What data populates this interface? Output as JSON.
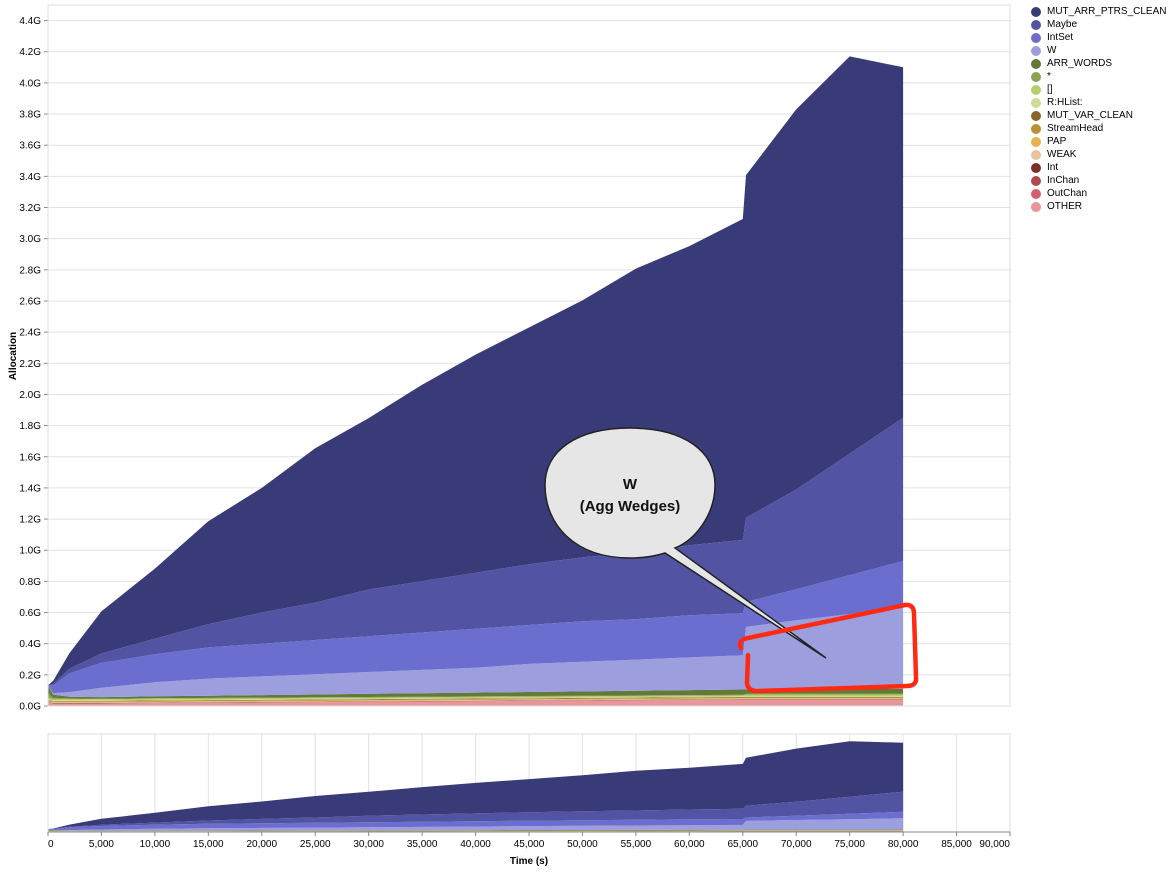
{
  "chart_data": {
    "type": "area",
    "stacked": true,
    "xlabel": "Time (s)",
    "ylabel": "Allocation",
    "xlim": [
      0,
      90000
    ],
    "ylim": [
      0,
      4.5
    ],
    "y_unit_suffix": "G",
    "x_ticks": [
      0,
      5000,
      10000,
      15000,
      20000,
      25000,
      30000,
      35000,
      40000,
      45000,
      50000,
      55000,
      60000,
      65000,
      70000,
      75000,
      80000,
      85000,
      90000
    ],
    "x_tick_labels": [
      "0",
      "5,000",
      "10,000",
      "15,000",
      "20,000",
      "25,000",
      "30,000",
      "35,000",
      "40,000",
      "45,000",
      "50,000",
      "55,000",
      "60,000",
      "65,000",
      "70,000",
      "75,000",
      "80,000",
      "85,000",
      "90,000"
    ],
    "y_ticks": [
      0.0,
      0.2,
      0.4,
      0.6,
      0.8,
      1.0,
      1.2,
      1.4,
      1.6,
      1.8,
      2.0,
      2.2,
      2.4,
      2.6,
      2.8,
      3.0,
      3.2,
      3.4,
      3.6,
      3.8,
      4.0,
      4.2,
      4.4
    ],
    "y_tick_labels": [
      "0.0G",
      "0.2G",
      "0.4G",
      "0.6G",
      "0.8G",
      "1.0G",
      "1.2G",
      "1.4G",
      "1.6G",
      "1.8G",
      "2.0G",
      "2.2G",
      "2.4G",
      "2.6G",
      "2.8G",
      "3.0G",
      "3.2G",
      "3.4G",
      "3.6G",
      "3.8G",
      "4.0G",
      "4.2G",
      "4.4G"
    ],
    "legend_position": "right",
    "grid": true,
    "x": [
      0,
      500,
      2000,
      5000,
      10000,
      15000,
      20000,
      25000,
      30000,
      35000,
      40000,
      45000,
      50000,
      55000,
      60000,
      65000,
      65300,
      70000,
      75000,
      80000
    ],
    "series": [
      {
        "name": "OTHER",
        "color": "#e8959c",
        "values": [
          0.02,
          0.015,
          0.015,
          0.015,
          0.018,
          0.02,
          0.022,
          0.024,
          0.026,
          0.028,
          0.03,
          0.032,
          0.034,
          0.036,
          0.038,
          0.04,
          0.04,
          0.04,
          0.04,
          0.04
        ]
      },
      {
        "name": "OutChan",
        "color": "#d25f6e",
        "values": [
          0.001,
          0.001,
          0.001,
          0.001,
          0.001,
          0.001,
          0.001,
          0.001,
          0.001,
          0.001,
          0.001,
          0.001,
          0.001,
          0.001,
          0.001,
          0.001,
          0.001,
          0.001,
          0.001,
          0.001
        ]
      },
      {
        "name": "InChan",
        "color": "#b14a4f",
        "values": [
          0.001,
          0.001,
          0.001,
          0.001,
          0.001,
          0.001,
          0.001,
          0.001,
          0.001,
          0.001,
          0.001,
          0.001,
          0.001,
          0.001,
          0.001,
          0.001,
          0.001,
          0.001,
          0.001,
          0.001
        ]
      },
      {
        "name": "Int",
        "color": "#7d2d2a",
        "values": [
          0.002,
          0.002,
          0.002,
          0.002,
          0.002,
          0.002,
          0.002,
          0.002,
          0.002,
          0.002,
          0.002,
          0.002,
          0.002,
          0.002,
          0.002,
          0.002,
          0.002,
          0.002,
          0.002,
          0.002
        ]
      },
      {
        "name": "WEAK",
        "color": "#e7c39b",
        "values": [
          0.003,
          0.003,
          0.003,
          0.003,
          0.003,
          0.003,
          0.003,
          0.003,
          0.003,
          0.003,
          0.003,
          0.003,
          0.003,
          0.003,
          0.003,
          0.003,
          0.003,
          0.003,
          0.003,
          0.003
        ]
      },
      {
        "name": "PAP",
        "color": "#e6b24e",
        "values": [
          0.004,
          0.004,
          0.004,
          0.004,
          0.004,
          0.004,
          0.004,
          0.004,
          0.004,
          0.004,
          0.004,
          0.004,
          0.004,
          0.004,
          0.004,
          0.004,
          0.004,
          0.004,
          0.004,
          0.004
        ]
      },
      {
        "name": "StreamHead",
        "color": "#b89335",
        "values": [
          0.004,
          0.004,
          0.004,
          0.004,
          0.004,
          0.004,
          0.004,
          0.004,
          0.004,
          0.004,
          0.004,
          0.004,
          0.004,
          0.004,
          0.004,
          0.004,
          0.004,
          0.004,
          0.004,
          0.004
        ]
      },
      {
        "name": "MUT_VAR_CLEAN",
        "color": "#86632f",
        "values": [
          0.003,
          0.003,
          0.003,
          0.003,
          0.003,
          0.003,
          0.003,
          0.003,
          0.003,
          0.003,
          0.003,
          0.003,
          0.003,
          0.003,
          0.003,
          0.003,
          0.003,
          0.003,
          0.003,
          0.003
        ]
      },
      {
        "name": "R:HList:",
        "color": "#cedb9c",
        "values": [
          0.004,
          0.004,
          0.004,
          0.004,
          0.004,
          0.004,
          0.004,
          0.004,
          0.004,
          0.004,
          0.004,
          0.004,
          0.004,
          0.004,
          0.004,
          0.004,
          0.004,
          0.004,
          0.004,
          0.004
        ]
      },
      {
        "name": "[]",
        "color": "#b5cf6b",
        "values": [
          0.01,
          0.006,
          0.006,
          0.006,
          0.006,
          0.006,
          0.006,
          0.006,
          0.006,
          0.006,
          0.006,
          0.006,
          0.006,
          0.006,
          0.006,
          0.006,
          0.01,
          0.012,
          0.012,
          0.012
        ]
      },
      {
        "name": "*",
        "color": "#8ca252",
        "values": [
          0.03,
          0.01,
          0.006,
          0.004,
          0.004,
          0.004,
          0.004,
          0.004,
          0.004,
          0.004,
          0.004,
          0.004,
          0.004,
          0.004,
          0.004,
          0.004,
          0.006,
          0.006,
          0.006,
          0.006
        ]
      },
      {
        "name": "ARR_WORDS",
        "color": "#637939",
        "values": [
          0.05,
          0.02,
          0.01,
          0.01,
          0.012,
          0.014,
          0.016,
          0.018,
          0.02,
          0.022,
          0.024,
          0.026,
          0.028,
          0.03,
          0.032,
          0.034,
          0.03,
          0.03,
          0.03,
          0.03
        ]
      },
      {
        "name": "W",
        "color": "#9c9ede",
        "values": [
          0.0,
          0.01,
          0.03,
          0.06,
          0.09,
          0.11,
          0.12,
          0.13,
          0.14,
          0.15,
          0.16,
          0.18,
          0.19,
          0.2,
          0.21,
          0.22,
          0.4,
          0.44,
          0.48,
          0.52
        ]
      },
      {
        "name": "IntSet",
        "color": "#6b6ecf",
        "values": [
          0.0,
          0.05,
          0.12,
          0.16,
          0.18,
          0.2,
          0.21,
          0.22,
          0.23,
          0.24,
          0.25,
          0.25,
          0.26,
          0.26,
          0.27,
          0.27,
          0.16,
          0.2,
          0.25,
          0.3
        ]
      },
      {
        "name": "Maybe",
        "color": "#5254a3",
        "values": [
          0.0,
          0.01,
          0.03,
          0.06,
          0.1,
          0.15,
          0.2,
          0.24,
          0.3,
          0.33,
          0.36,
          0.39,
          0.41,
          0.43,
          0.45,
          0.47,
          0.54,
          0.64,
          0.78,
          0.92
        ]
      },
      {
        "name": "MUT_ARR_PTRS_CLEAN",
        "color": "#393b79",
        "values": [
          0.0,
          0.02,
          0.1,
          0.27,
          0.45,
          0.66,
          0.8,
          0.99,
          1.1,
          1.26,
          1.4,
          1.52,
          1.65,
          1.82,
          1.92,
          2.06,
          2.2,
          2.44,
          2.55,
          2.25
        ]
      }
    ],
    "annotation": {
      "callout_line1": "W",
      "callout_line2": "(Agg Wedges)",
      "callout_target_series": "W",
      "highlight_x_range": [
        65000,
        80000
      ],
      "highlight_y_range": [
        0.12,
        0.62
      ],
      "highlight_color": "#ff2a12"
    },
    "overview": {
      "xlim": [
        0,
        90000
      ],
      "ylim": [
        0,
        4.5
      ]
    }
  },
  "legend_order": [
    "MUT_ARR_PTRS_CLEAN",
    "Maybe",
    "IntSet",
    "W",
    "ARR_WORDS",
    "*",
    "[]",
    "R:HList:",
    "MUT_VAR_CLEAN",
    "StreamHead",
    "PAP",
    "WEAK",
    "Int",
    "InChan",
    "OutChan",
    "OTHER"
  ]
}
